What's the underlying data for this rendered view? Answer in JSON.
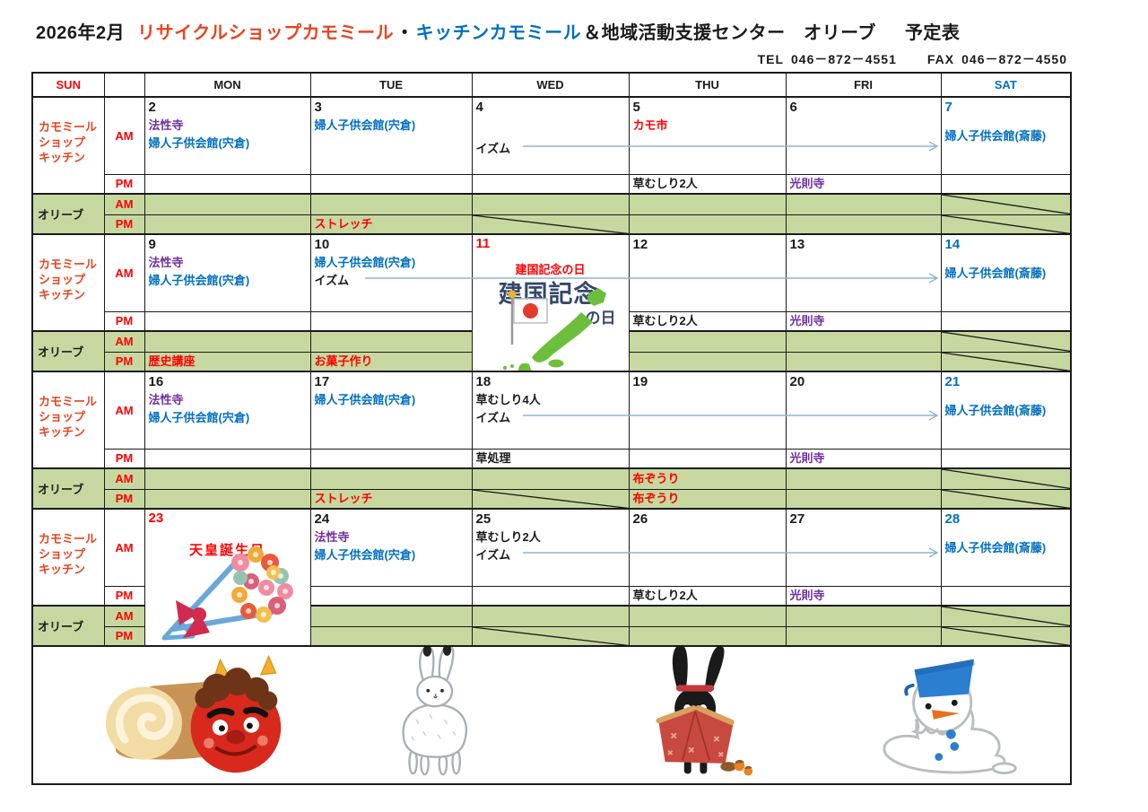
{
  "title": {
    "month": "2026年2月",
    "shop_red": "リサイクルショップカモミール",
    "dot": "・",
    "shop_blue": "キッチンカモミール",
    "rest": "＆地域活動支援センター　オリーブ",
    "suffix": "予定表"
  },
  "contact": {
    "tel_label": "TEL",
    "tel": "046－872－4551",
    "fax_label": "FAX",
    "fax": "046－872－4550"
  },
  "colors": {
    "red": "#FF0000",
    "red_orange": "#E8441F",
    "blue": "#0070C0",
    "purple": "#7030A0",
    "black": "#1A1A1A",
    "sat_blue": "#0070C0",
    "olive_bg": "#C6D89F",
    "arrow": "#8FB4D2",
    "kenkoku_navy": "#35486B",
    "map_green": "#6CBF3C",
    "flag_red": "#E03C2D",
    "ribbon_red": "#D12B4E",
    "bucket_blue": "#2B7FD0"
  },
  "header": {
    "sun": "SUN",
    "blank": "",
    "mon": "MON",
    "tue": "TUE",
    "wed": "WED",
    "thu": "THU",
    "fri": "FRI",
    "sat": "SAT"
  },
  "labels": {
    "shop_lines": [
      "カモミール",
      "ショップ",
      "キッチン"
    ],
    "olive": "オリーブ",
    "am": "AM",
    "pm": "PM"
  },
  "holidays": {
    "kenkoku": {
      "label": "建国記念の日",
      "logo_big": "建国記念",
      "logo_small": "の日"
    },
    "tenno": {
      "label": "天皇誕生日"
    }
  },
  "weeks": [
    {
      "arrow": {
        "from_text": "イズム",
        "start_col": "wed",
        "end_col": "sat"
      },
      "days": {
        "mon": {
          "num": "2",
          "am": [
            [
              "法性寺",
              "purple"
            ],
            [
              "婦人子供会館(宍倉)",
              "blue"
            ]
          ]
        },
        "tue": {
          "num": "3",
          "am": [
            [
              "婦人子供会館(宍倉)",
              "blue"
            ]
          ],
          "opm": [
            [
              "ストレッチ",
              "red"
            ]
          ]
        },
        "wed": {
          "num": "4",
          "am": [
            [
              "イズム",
              "black"
            ]
          ],
          "am_push": true,
          "opm_diag": true
        },
        "thu": {
          "num": "5",
          "am": [
            [
              "カモ市",
              "red"
            ]
          ],
          "pm": [
            [
              "草むしり2人",
              "black"
            ]
          ]
        },
        "fri": {
          "num": "6",
          "pm": [
            [
              "光則寺",
              "purple"
            ]
          ]
        },
        "sat": {
          "num": "7",
          "numc": "sat",
          "am": [
            [
              "婦人子供会館(斎藤)",
              "blue"
            ]
          ],
          "oam_diag": true,
          "opm_diag": true
        }
      }
    },
    {
      "arrow": {
        "from_text": "イズム",
        "start_col": "tue",
        "end_col": "sat"
      },
      "days": {
        "mon": {
          "num": "9",
          "am": [
            [
              "法性寺",
              "purple"
            ],
            [
              "婦人子供会館(宍倉)",
              "blue"
            ]
          ],
          "opm": [
            [
              "歴史講座",
              "red"
            ]
          ]
        },
        "tue": {
          "num": "10",
          "am": [
            [
              "婦人子供会館(宍倉)",
              "blue"
            ],
            [
              "イズム",
              "black"
            ]
          ],
          "opm": [
            [
              "お菓子作り",
              "red"
            ]
          ]
        },
        "wed": {
          "num": "11",
          "numc": "red",
          "special": "kenkoku"
        },
        "thu": {
          "num": "12",
          "pm": [
            [
              "草むしり2人",
              "black"
            ]
          ]
        },
        "fri": {
          "num": "13",
          "pm": [
            [
              "光則寺",
              "purple"
            ]
          ]
        },
        "sat": {
          "num": "14",
          "numc": "sat",
          "am": [
            [
              "婦人子供会館(斎藤)",
              "blue"
            ]
          ],
          "oam_diag": true,
          "opm_diag": true
        }
      }
    },
    {
      "arrow": {
        "from_text": "イズム",
        "start_col": "wed",
        "end_col": "sat"
      },
      "days": {
        "mon": {
          "num": "16",
          "am": [
            [
              "法性寺",
              "purple"
            ],
            [
              "婦人子供会館(宍倉)",
              "blue"
            ]
          ]
        },
        "tue": {
          "num": "17",
          "am": [
            [
              "婦人子供会館(宍倉)",
              "blue"
            ]
          ],
          "opm": [
            [
              "ストレッチ",
              "red"
            ]
          ]
        },
        "wed": {
          "num": "18",
          "am": [
            [
              "草むしり4人",
              "black"
            ],
            [
              "イズム",
              "black"
            ]
          ],
          "pm": [
            [
              "草処理",
              "black"
            ]
          ],
          "opm_diag": true
        },
        "thu": {
          "num": "19",
          "oam": [
            [
              "布ぞうり",
              "red"
            ]
          ],
          "opm": [
            [
              "布ぞうり",
              "red"
            ]
          ]
        },
        "fri": {
          "num": "20",
          "pm": [
            [
              "光則寺",
              "purple"
            ]
          ]
        },
        "sat": {
          "num": "21",
          "numc": "sat",
          "am": [
            [
              "婦人子供会館(斎藤)",
              "blue"
            ]
          ],
          "oam_diag": true,
          "opm_diag": true
        }
      }
    },
    {
      "arrow": {
        "from_text": "イズム",
        "start_col": "wed",
        "end_col": "sat"
      },
      "days": {
        "mon": {
          "num": "23",
          "numc": "red",
          "special": "tenno"
        },
        "tue": {
          "num": "24",
          "am": [
            [
              "法性寺",
              "purple"
            ],
            [
              "婦人子供会館(宍倉)",
              "blue"
            ]
          ]
        },
        "wed": {
          "num": "25",
          "am": [
            [
              "草むしり2人",
              "black"
            ],
            [
              "イズム",
              "black"
            ]
          ],
          "opm_diag": true
        },
        "thu": {
          "num": "26",
          "pm": [
            [
              "草むしり2人",
              "black"
            ]
          ]
        },
        "fri": {
          "num": "27",
          "pm": [
            [
              "光則寺",
              "purple"
            ]
          ]
        },
        "sat": {
          "num": "28",
          "numc": "sat",
          "am": [
            [
              "婦人子供会館(斎藤)",
              "blue"
            ]
          ],
          "oam_diag": true,
          "opm_diag": true
        }
      }
    }
  ],
  "illustrations": [
    "oni-roll-cake",
    "snow-rabbit",
    "black-rabbit-furoshiki",
    "melting-snowman"
  ]
}
